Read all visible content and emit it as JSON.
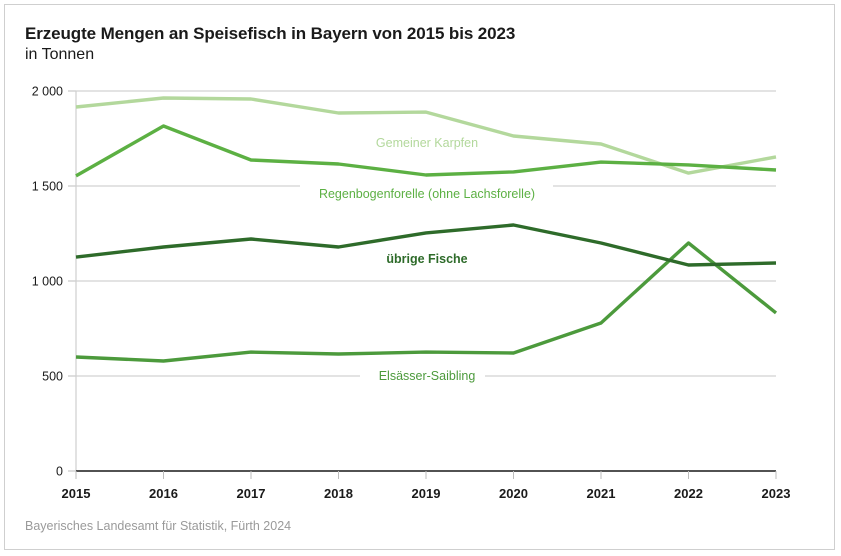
{
  "chart_data": {
    "type": "line",
    "title": "Erzeugte Mengen an Speisefisch in Bayern von 2015 bis 2023",
    "subtitle": "in Tonnen",
    "xlabel": "",
    "ylabel": "in Tonnen",
    "x": [
      "2015",
      "2016",
      "2017",
      "2018",
      "2019",
      "2020",
      "2021",
      "2022",
      "2023"
    ],
    "ylim": [
      0,
      2000
    ],
    "yticks": [
      0,
      500,
      1000,
      1500,
      2000
    ],
    "ytick_labels": [
      "0",
      "500",
      "1 000",
      "1 500",
      "2 000"
    ],
    "grid": true,
    "legend": "inline labels",
    "series": [
      {
        "name": "Gemeiner Karpfen",
        "color": "#b3d89c",
        "values": [
          1916,
          1963,
          1958,
          1884,
          1889,
          1763,
          1721,
          1568,
          1653
        ]
      },
      {
        "name": "Regenbogenforelle (ohne Lachsforelle)",
        "color": "#5cb043",
        "values": [
          1553,
          1816,
          1637,
          1616,
          1558,
          1574,
          1626,
          1611,
          1584
        ]
      },
      {
        "name": "übrige Fische",
        "color": "#2e6b2a",
        "values": [
          1126,
          1179,
          1221,
          1179,
          1253,
          1295,
          1200,
          1084,
          1095
        ]
      },
      {
        "name": "Elsässer-Saibling",
        "color": "#4c9a3c",
        "values": [
          600,
          579,
          626,
          616,
          626,
          621,
          779,
          1200,
          832
        ]
      }
    ],
    "source": "Bayerisches Landesamt für Statistik, Fürth 2024"
  }
}
